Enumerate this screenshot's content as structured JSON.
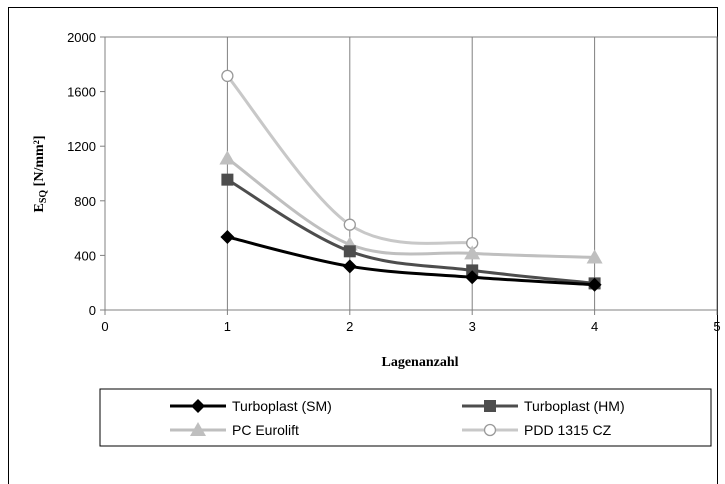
{
  "chart_data": {
    "type": "line",
    "title": "",
    "xlabel": "Lagenanzahl",
    "ylabel_main": "E",
    "ylabel_sub": "SQ",
    "ylabel_unit": " [N/mm²]",
    "xlim": [
      0,
      5
    ],
    "ylim": [
      0,
      2000
    ],
    "xticks": [
      0,
      1,
      2,
      3,
      4,
      5
    ],
    "yticks": [
      0,
      400,
      800,
      1200,
      1600,
      2000
    ],
    "grid": "vertical",
    "legend_position": "bottom",
    "series": [
      {
        "name": "Turboplast (SM)",
        "x": [
          1,
          2,
          3,
          4
        ],
        "y": [
          535,
          320,
          240,
          185
        ],
        "color": "#000000",
        "marker": "diamond"
      },
      {
        "name": "Turboplast (HM)",
        "x": [
          1,
          2,
          3,
          4
        ],
        "y": [
          955,
          430,
          290,
          195
        ],
        "color": "#4d4d4d",
        "marker": "square"
      },
      {
        "name": "PC Eurolift",
        "x": [
          1,
          2,
          3,
          4
        ],
        "y": [
          1110,
          480,
          415,
          385
        ],
        "color": "#bfbfbf",
        "marker": "triangle"
      },
      {
        "name": "PDD 1315 CZ",
        "x": [
          1,
          2,
          3
        ],
        "y": [
          1715,
          625,
          490
        ],
        "color": "#c8c8c8",
        "marker": "circle-open"
      }
    ]
  }
}
